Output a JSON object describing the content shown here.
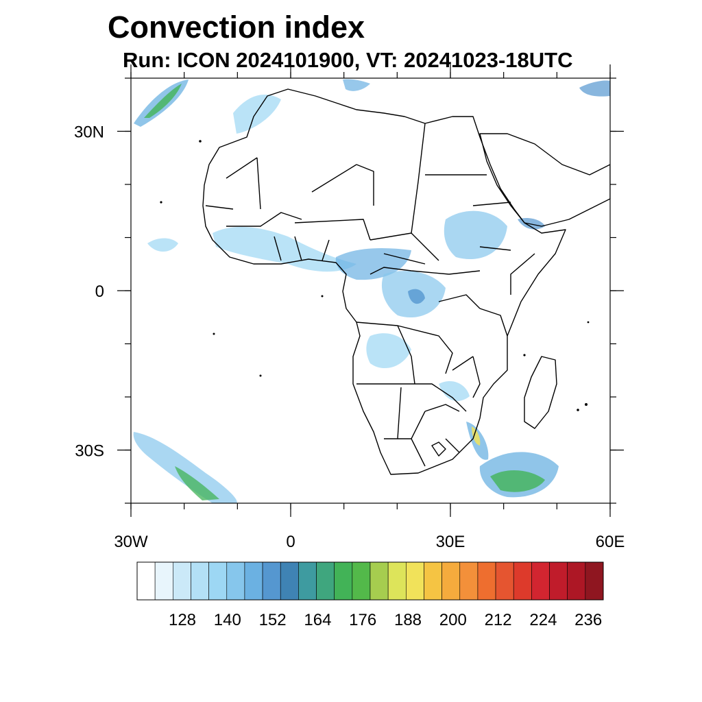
{
  "title": "Convection index",
  "subtitle": "Run: ICON 2024101900,  VT: 20241023-18UTC",
  "map": {
    "lon_range": [
      -30,
      60
    ],
    "lat_range": [
      -40,
      40
    ],
    "x_ticks": [
      {
        "lon": -30,
        "label": "30W"
      },
      {
        "lon": 0,
        "label": "0"
      },
      {
        "lon": 30,
        "label": "30E"
      },
      {
        "lon": 60,
        "label": "60E"
      }
    ],
    "y_ticks": [
      {
        "lat": 30,
        "label": "30N"
      },
      {
        "lat": 0,
        "label": "0"
      },
      {
        "lat": -30,
        "label": "30S"
      }
    ],
    "minor_lon_step": 10,
    "minor_lat_step": 10
  },
  "colorbar": {
    "colors": [
      "#ffffff",
      "#e8f5fc",
      "#cbe9f8",
      "#b3e0f6",
      "#9dd7f4",
      "#86c6ec",
      "#6bb1e2",
      "#5597d0",
      "#3f83b4",
      "#3e9ba0",
      "#3fa67e",
      "#42b357",
      "#53b94a",
      "#a6cd4f",
      "#dde45a",
      "#f1e25a",
      "#f5c443",
      "#f5ab3d",
      "#f3903a",
      "#ee6e2f",
      "#e55530",
      "#dd3a2b",
      "#d22530",
      "#c01c2b",
      "#ad1725",
      "#8f1620"
    ],
    "labels": [
      "128",
      "140",
      "152",
      "164",
      "176",
      "188",
      "200",
      "212",
      "224",
      "236"
    ]
  },
  "features": {
    "land_color": "#ffffff",
    "border_color": "#000000"
  }
}
